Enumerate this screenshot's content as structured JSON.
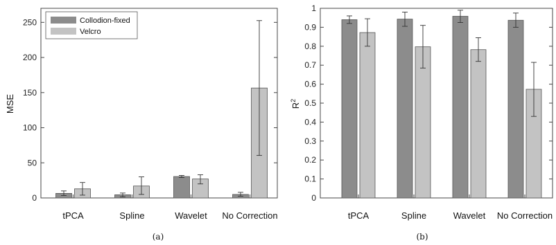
{
  "colors": {
    "series1": "#8c8c8c",
    "series2": "#c3c3c3",
    "axis": "#444444",
    "errorbar": "#333333"
  },
  "chart_data": [
    {
      "type": "bar",
      "panel": "(a)",
      "categories": [
        "tPCA",
        "Spline",
        "Wavelet",
        "No Correction"
      ],
      "ylabel": "MSE",
      "ylim": [
        0,
        270
      ],
      "yticks": [
        0,
        50,
        100,
        150,
        200,
        250
      ],
      "legend": {
        "placement": "top-left"
      },
      "series": [
        {
          "name": "Collodion-fixed",
          "color": "#8c8c8c",
          "values": [
            6.5,
            4.5,
            30.5,
            5.0
          ],
          "err_low": [
            3.5,
            1.5,
            29.0,
            2.5
          ],
          "err_high": [
            10.0,
            7.0,
            32.0,
            8.0
          ]
        },
        {
          "name": "Velcro",
          "color": "#c3c3c3",
          "values": [
            13.0,
            17.0,
            27.0,
            156.5
          ],
          "err_low": [
            4.0,
            5.0,
            20.0,
            60.5
          ],
          "err_high": [
            22.0,
            30.0,
            33.0,
            252.5
          ]
        }
      ]
    },
    {
      "type": "bar",
      "panel": "(b)",
      "categories": [
        "tPCA",
        "Spline",
        "Wavelet",
        "No Correction"
      ],
      "ylabel": "R",
      "ylabel_superscript": "2",
      "ylim": [
        0,
        1
      ],
      "yticks": [
        "0",
        "0.1",
        "0.2",
        "0.3",
        "0.4",
        "0.5",
        "0.6",
        "0.7",
        "0.8",
        "0.9",
        "1"
      ],
      "series": [
        {
          "name": "Collodion-fixed",
          "color": "#8c8c8c",
          "values": [
            0.94,
            0.943,
            0.958,
            0.937
          ],
          "err_low": [
            0.92,
            0.905,
            0.925,
            0.9
          ],
          "err_high": [
            0.96,
            0.98,
            0.99,
            0.975
          ]
        },
        {
          "name": "Velcro",
          "color": "#c3c3c3",
          "values": [
            0.872,
            0.797,
            0.782,
            0.573
          ],
          "err_low": [
            0.8,
            0.685,
            0.72,
            0.43
          ],
          "err_high": [
            0.945,
            0.91,
            0.845,
            0.715
          ]
        }
      ]
    }
  ]
}
